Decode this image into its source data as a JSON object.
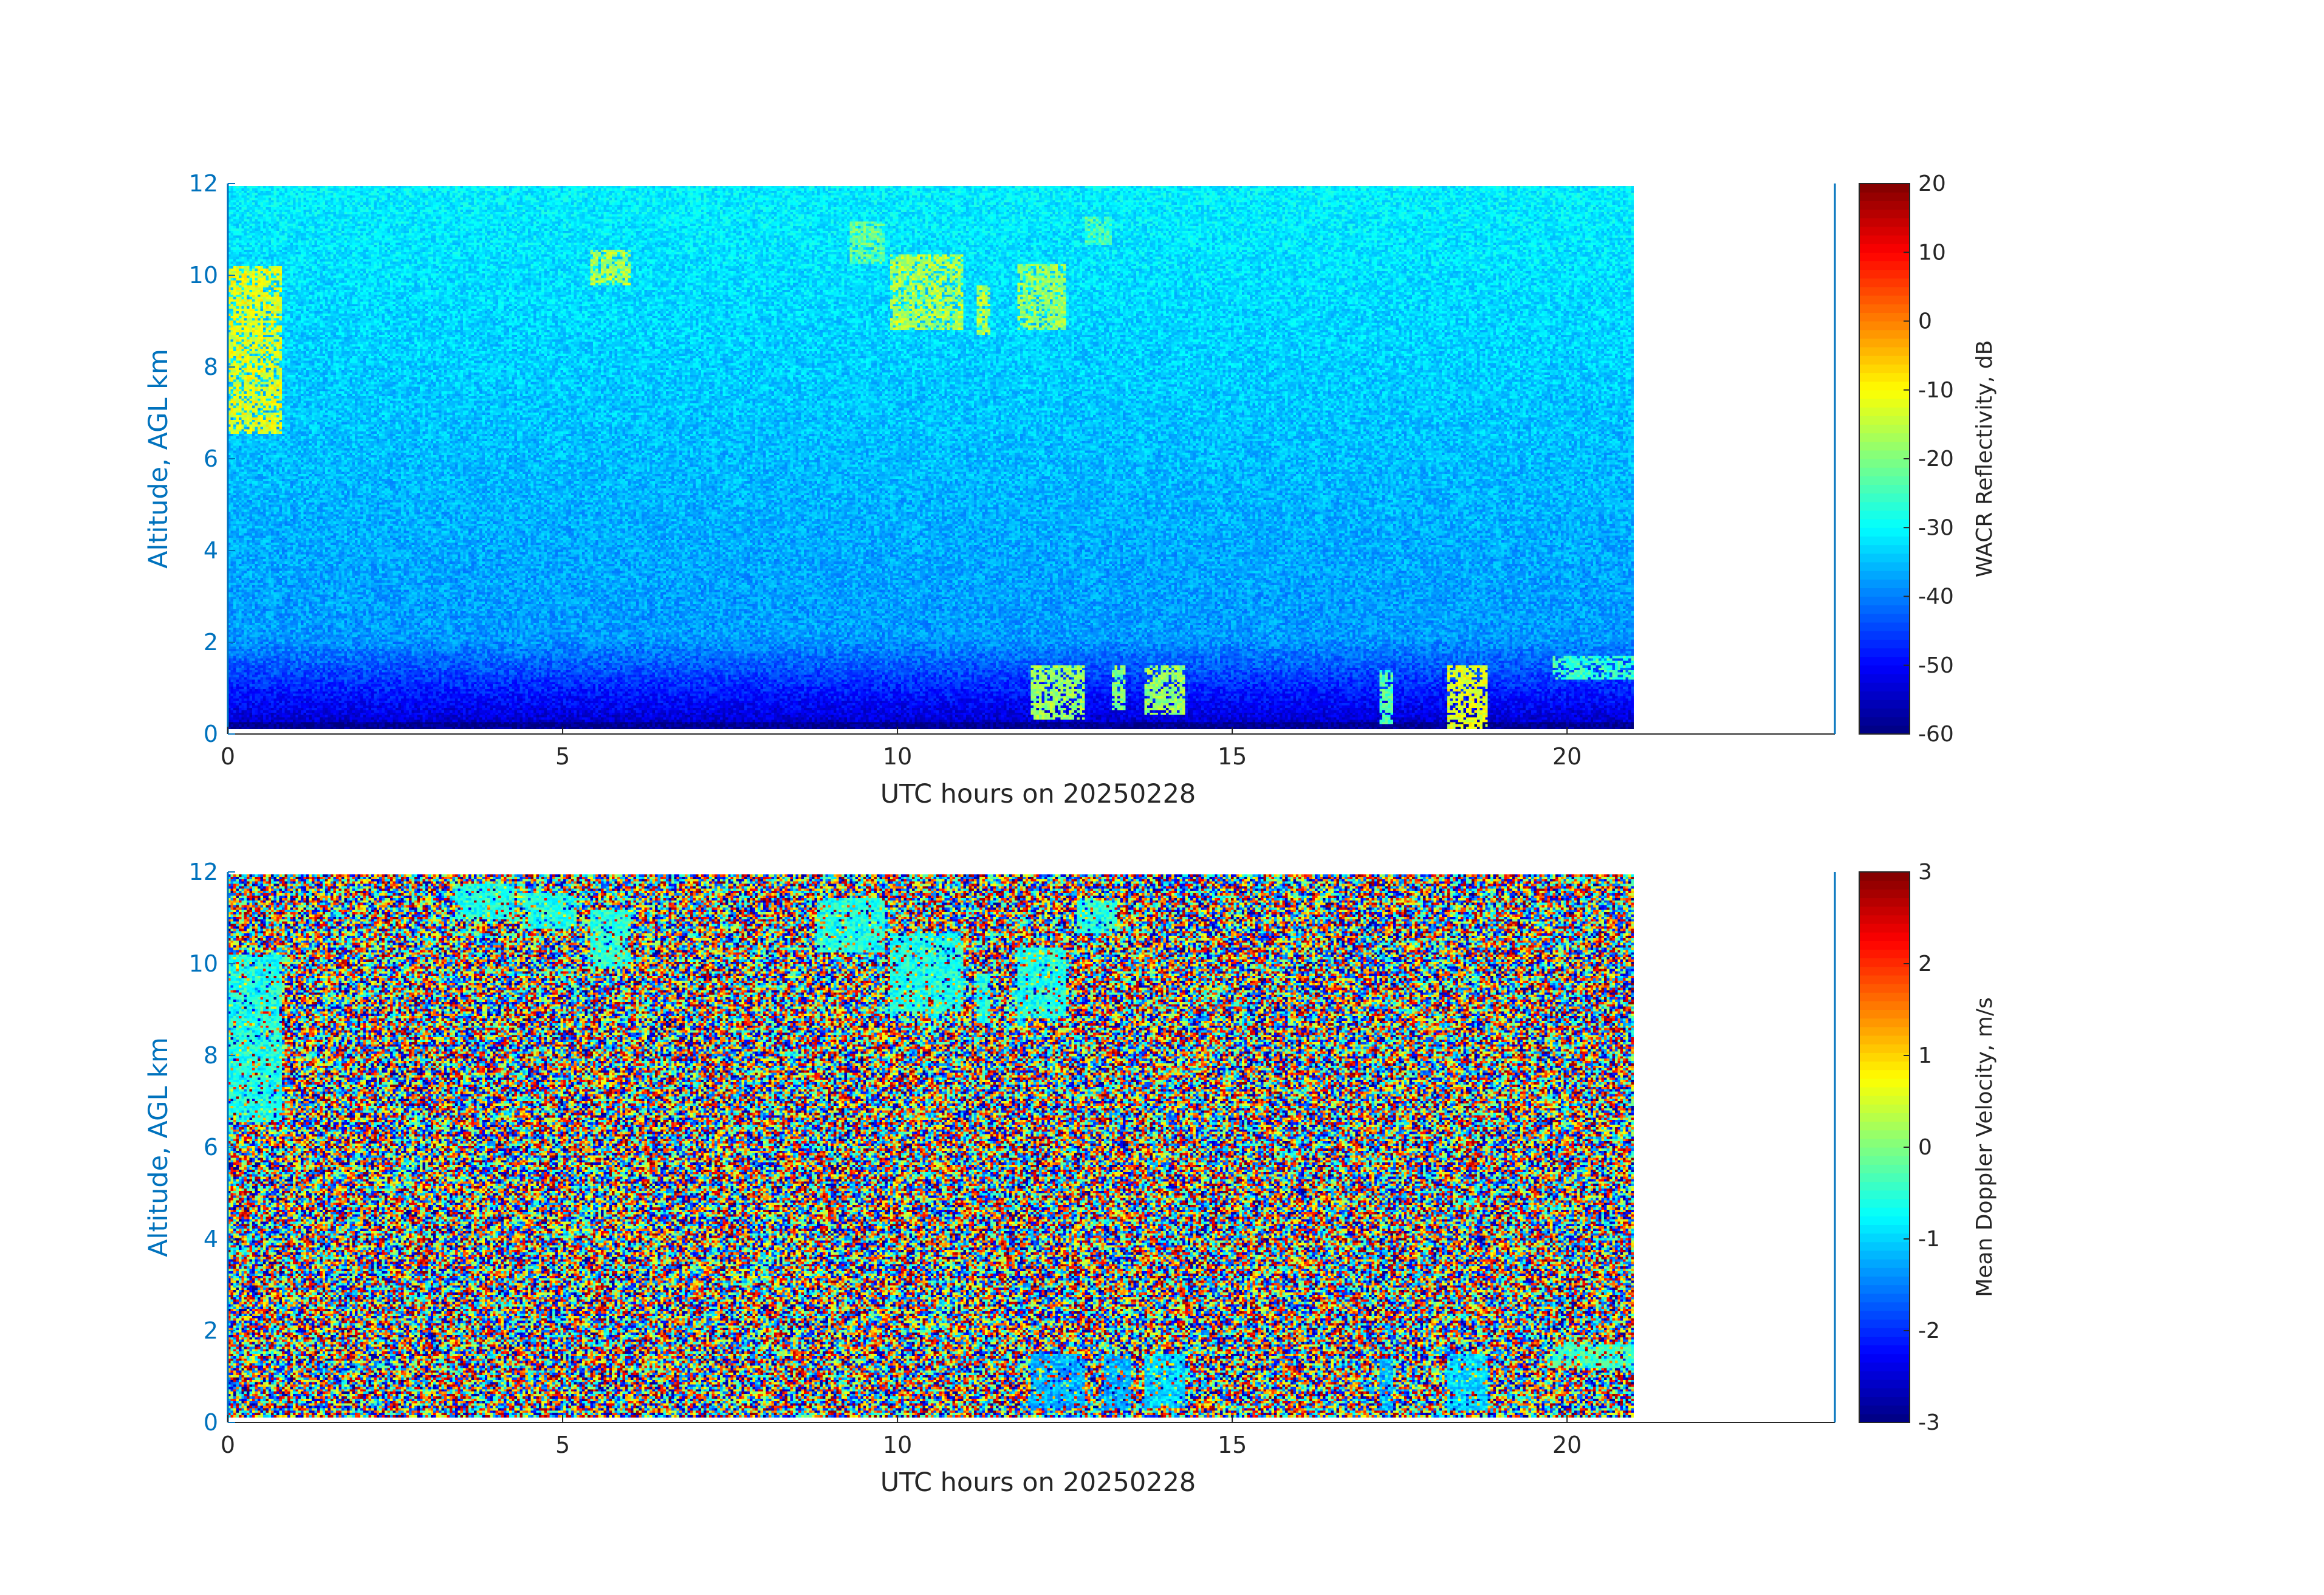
{
  "chart_data": [
    {
      "type": "heatmap",
      "title": "",
      "xlabel": "UTC hours on 20250228",
      "ylabel": "Altitude, AGL km",
      "xlim": [
        0,
        24
      ],
      "ylim": [
        0,
        12
      ],
      "data_end_hour": 21,
      "x_ticks": [
        "0",
        "5",
        "10",
        "15",
        "20"
      ],
      "x_tick_values": [
        0,
        5,
        10,
        15,
        20
      ],
      "y_ticks": [
        "0",
        "2",
        "4",
        "6",
        "8",
        "10",
        "12"
      ],
      "y_tick_values": [
        0,
        2,
        4,
        6,
        8,
        10,
        12
      ],
      "colorbar": {
        "label": "WACR Reflectivity, dB",
        "range": [
          -60,
          20
        ],
        "ticks": [
          "-60",
          "-50",
          "-40",
          "-30",
          "-20",
          "-10",
          "0",
          "10",
          "20"
        ],
        "tick_values": [
          -60,
          -50,
          -40,
          -30,
          -20,
          -10,
          0,
          10,
          20
        ],
        "colormap": "jet"
      },
      "background_value_approx": {
        "near_surface": -55,
        "mid": -38,
        "top": -31
      },
      "features": [
        {
          "kind": "cirrus",
          "x_start": 0.0,
          "x_end": 0.8,
          "y_bottom": 6.5,
          "y_top": 10.2,
          "value": -12
        },
        {
          "kind": "cirrus",
          "x_start": 5.4,
          "x_end": 6.0,
          "y_bottom": 9.8,
          "y_top": 10.6,
          "value": -16
        },
        {
          "kind": "cirrus",
          "x_start": 9.3,
          "x_end": 9.8,
          "y_bottom": 10.3,
          "y_top": 11.2,
          "value": -22
        },
        {
          "kind": "cirrus",
          "x_start": 9.9,
          "x_end": 11.0,
          "y_bottom": 8.8,
          "y_top": 10.5,
          "value": -16
        },
        {
          "kind": "cirrus",
          "x_start": 11.2,
          "x_end": 11.4,
          "y_bottom": 8.7,
          "y_top": 9.8,
          "value": -16
        },
        {
          "kind": "cirrus",
          "x_start": 11.8,
          "x_end": 12.5,
          "y_bottom": 8.8,
          "y_top": 10.3,
          "value": -18
        },
        {
          "kind": "cirrus",
          "x_start": 12.8,
          "x_end": 13.2,
          "y_bottom": 10.7,
          "y_top": 11.3,
          "value": -24
        },
        {
          "kind": "low_cloud",
          "x_start": 12.0,
          "x_end": 12.8,
          "y_bottom": 0.2,
          "y_top": 1.4,
          "value": -18
        },
        {
          "kind": "low_cloud",
          "x_start": 13.2,
          "x_end": 13.4,
          "y_bottom": 0.4,
          "y_top": 1.4,
          "value": -20
        },
        {
          "kind": "low_cloud",
          "x_start": 13.7,
          "x_end": 14.3,
          "y_bottom": 0.3,
          "y_top": 1.4,
          "value": -18
        },
        {
          "kind": "low_cloud",
          "x_start": 17.2,
          "x_end": 17.4,
          "y_bottom": 0.1,
          "y_top": 1.3,
          "value": -24
        },
        {
          "kind": "low_cloud",
          "x_start": 18.2,
          "x_end": 18.8,
          "y_bottom": 0.0,
          "y_top": 1.4,
          "value": -12
        },
        {
          "kind": "low_cloud",
          "x_start": 19.8,
          "x_end": 21.0,
          "y_bottom": 1.1,
          "y_top": 1.6,
          "value": -26
        }
      ]
    },
    {
      "type": "heatmap",
      "title": "",
      "xlabel": "UTC hours on 20250228",
      "ylabel": "Altitude, AGL km",
      "xlim": [
        0,
        24
      ],
      "ylim": [
        0,
        12
      ],
      "data_end_hour": 21,
      "x_ticks": [
        "0",
        "5",
        "10",
        "15",
        "20"
      ],
      "x_tick_values": [
        0,
        5,
        10,
        15,
        20
      ],
      "y_ticks": [
        "0",
        "2",
        "4",
        "6",
        "8",
        "10",
        "12"
      ],
      "y_tick_values": [
        0,
        2,
        4,
        6,
        8,
        10,
        12
      ],
      "colorbar": {
        "label": "Mean Doppler Velocity, m/s",
        "range": [
          -3,
          3
        ],
        "ticks": [
          "-3",
          "-2",
          "-1",
          "0",
          "1",
          "2",
          "3"
        ],
        "tick_values": [
          -3,
          -2,
          -1,
          0,
          1,
          2,
          3
        ],
        "colormap": "jet"
      },
      "background": "random noise across full velocity range",
      "features": [
        {
          "kind": "cirrus",
          "x_start": 0.0,
          "x_end": 0.8,
          "y_bottom": 6.5,
          "y_top": 10.2,
          "value": -0.6
        },
        {
          "kind": "cirrus",
          "x_start": 3.4,
          "x_end": 4.3,
          "y_bottom": 11.0,
          "y_top": 11.8,
          "value": -0.6
        },
        {
          "kind": "cirrus",
          "x_start": 4.4,
          "x_end": 5.2,
          "y_bottom": 10.8,
          "y_top": 11.6,
          "value": -0.6
        },
        {
          "kind": "cirrus",
          "x_start": 5.4,
          "x_end": 6.0,
          "y_bottom": 9.9,
          "y_top": 11.2,
          "value": -0.5
        },
        {
          "kind": "cirrus",
          "x_start": 8.8,
          "x_end": 9.8,
          "y_bottom": 10.3,
          "y_top": 11.5,
          "value": -0.6
        },
        {
          "kind": "cirrus",
          "x_start": 9.9,
          "x_end": 11.0,
          "y_bottom": 9.0,
          "y_top": 10.7,
          "value": -0.6
        },
        {
          "kind": "cirrus",
          "x_start": 11.2,
          "x_end": 11.4,
          "y_bottom": 8.7,
          "y_top": 9.8,
          "value": -0.6
        },
        {
          "kind": "cirrus",
          "x_start": 11.8,
          "x_end": 12.5,
          "y_bottom": 8.8,
          "y_top": 10.4,
          "value": -0.6
        },
        {
          "kind": "cirrus",
          "x_start": 12.7,
          "x_end": 13.3,
          "y_bottom": 10.7,
          "y_top": 11.4,
          "value": -0.5
        },
        {
          "kind": "low_cloud",
          "x_start": 12.0,
          "x_end": 12.8,
          "y_bottom": 0.2,
          "y_top": 1.4,
          "value": -1.2
        },
        {
          "kind": "low_cloud",
          "x_start": 13.1,
          "x_end": 13.5,
          "y_bottom": 0.2,
          "y_top": 1.4,
          "value": -1.2
        },
        {
          "kind": "low_cloud",
          "x_start": 13.7,
          "x_end": 14.3,
          "y_bottom": 0.2,
          "y_top": 1.4,
          "value": -1.0
        },
        {
          "kind": "low_cloud",
          "x_start": 17.2,
          "x_end": 17.4,
          "y_bottom": 0.1,
          "y_top": 1.3,
          "value": -1.2
        },
        {
          "kind": "low_cloud",
          "x_start": 18.2,
          "x_end": 18.8,
          "y_bottom": 0.0,
          "y_top": 1.4,
          "value": -1.0
        },
        {
          "kind": "low_cloud",
          "x_start": 19.8,
          "x_end": 21.0,
          "y_bottom": 1.1,
          "y_top": 1.6,
          "value": -0.4
        }
      ]
    }
  ]
}
